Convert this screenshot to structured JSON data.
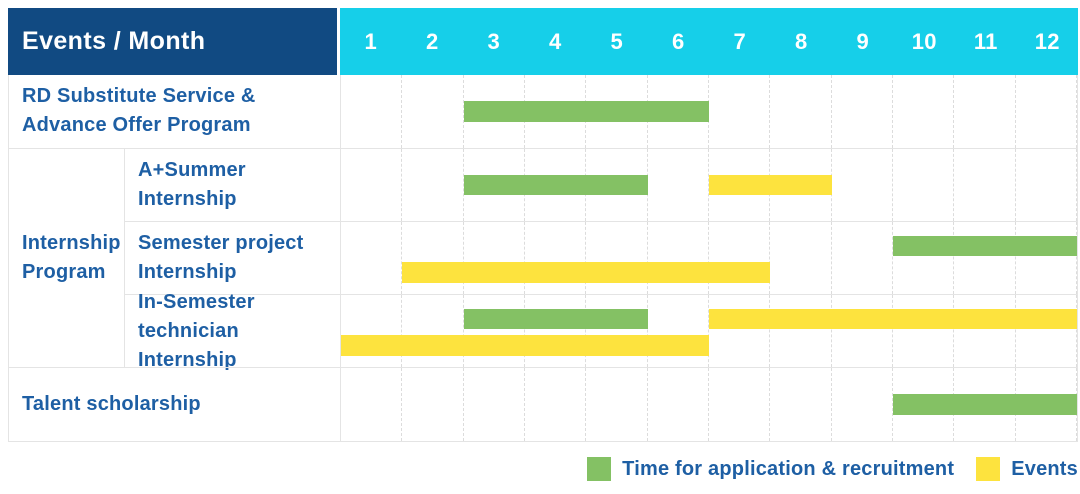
{
  "chart_data": {
    "type": "gantt",
    "title": "Events / Month",
    "x_axis": {
      "label": "Month",
      "ticks": [
        "1",
        "2",
        "3",
        "4",
        "5",
        "6",
        "7",
        "8",
        "9",
        "10",
        "11",
        "12"
      ],
      "range": [
        1,
        12
      ]
    },
    "colors": {
      "recruitment": "#84c164",
      "event": "#fde33e",
      "corner_bg": "#114a82",
      "months_bg": "#16cfe9",
      "label_text": "#1e5fa4"
    },
    "legend": [
      {
        "key": "recruitment",
        "label": "Time for application & recruitment",
        "color": "#84c164"
      },
      {
        "key": "event",
        "label": "Events",
        "color": "#fde33e"
      }
    ],
    "rows": [
      {
        "kind": "single",
        "label": "RD Substitute Service & Advance Offer Program",
        "label_lines": [
          "RD Substitute Service &",
          "Advance Offer Program"
        ],
        "lines": [
          [
            {
              "type": "recruitment",
              "start": 3,
              "end": 6
            }
          ]
        ]
      },
      {
        "kind": "group",
        "label": "Internship Program",
        "label_lines": [
          "Internship",
          "Program"
        ],
        "children": [
          {
            "label": "A+Summer Internship",
            "label_lines": [
              "A+Summer",
              "Internship"
            ],
            "lines": [
              [
                {
                  "type": "recruitment",
                  "start": 3,
                  "end": 5
                },
                {
                  "type": "event",
                  "start": 7,
                  "end": 8
                }
              ]
            ]
          },
          {
            "label": "Semester project Internship",
            "label_lines": [
              "Semester project",
              "Internship"
            ],
            "lines": [
              [
                {
                  "type": "recruitment",
                  "start": 10,
                  "end": 12
                }
              ],
              [
                {
                  "type": "event",
                  "start": 2,
                  "end": 7
                }
              ]
            ]
          },
          {
            "label": "In-Semester technician Internship",
            "label_lines": [
              "In-Semester",
              "technician Internship"
            ],
            "lines": [
              [
                {
                  "type": "recruitment",
                  "start": 3,
                  "end": 5
                },
                {
                  "type": "event",
                  "start": 7,
                  "end": 12
                }
              ],
              [
                {
                  "type": "event",
                  "start": 1,
                  "end": 6
                }
              ]
            ]
          }
        ]
      },
      {
        "kind": "single",
        "label": "Talent scholarship",
        "label_lines": [
          "Talent scholarship"
        ],
        "lines": [
          [
            {
              "type": "recruitment",
              "start": 10,
              "end": 12
            }
          ]
        ]
      }
    ]
  }
}
